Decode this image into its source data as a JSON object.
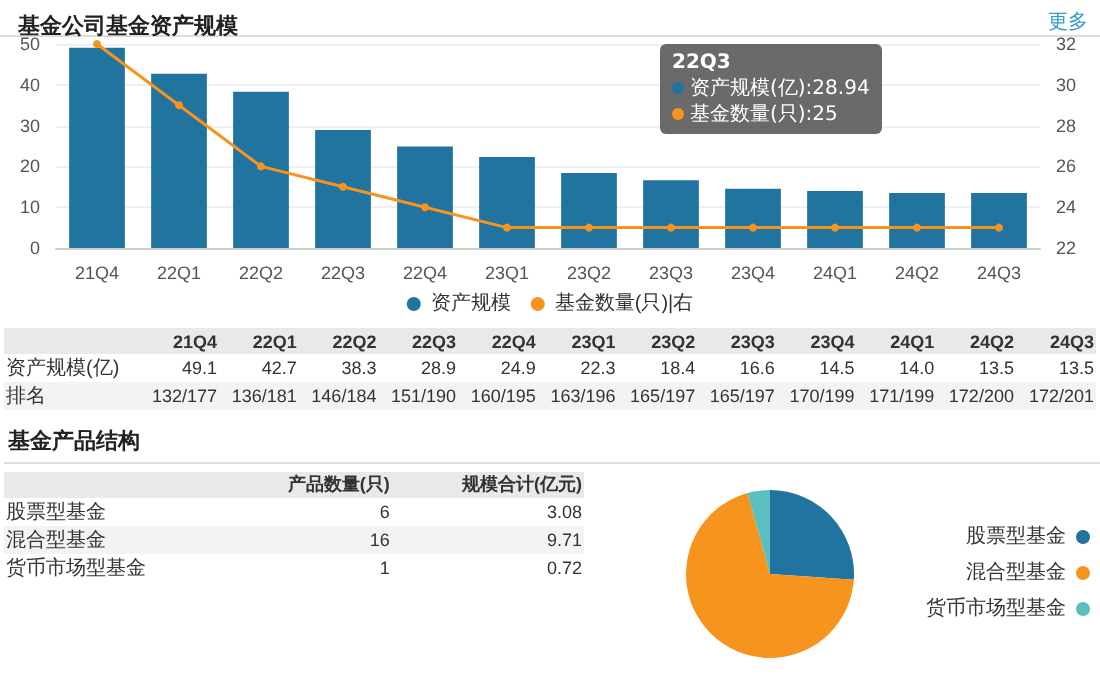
{
  "chart_data": [
    {
      "type": "bar",
      "title": "基金公司基金资产规模",
      "categories": [
        "21Q4",
        "22Q1",
        "22Q2",
        "22Q3",
        "22Q4",
        "23Q1",
        "23Q2",
        "23Q3",
        "23Q4",
        "24Q1",
        "24Q2",
        "24Q3"
      ],
      "series": [
        {
          "name": "资产规模",
          "type": "bar",
          "color": "#2274a0",
          "values": [
            49.1,
            42.7,
            38.3,
            28.9,
            24.9,
            22.3,
            18.4,
            16.6,
            14.5,
            14.0,
            13.5,
            13.5
          ]
        },
        {
          "name": "基金数量(只)|右",
          "type": "line",
          "axis": "y2",
          "color": "#f7941d",
          "values": [
            32,
            29,
            26,
            25,
            24,
            23,
            23,
            23,
            23,
            23,
            23,
            23
          ]
        }
      ],
      "ylim": [
        0,
        50
      ],
      "yticks": [
        0,
        10,
        20,
        30,
        40,
        50
      ],
      "y2lim": [
        22,
        32
      ],
      "y2ticks": [
        22,
        24,
        26,
        28,
        30,
        32
      ],
      "grid": "y",
      "legend": "bottom",
      "marker": "circle",
      "line_style": "solid",
      "annotations": [
        "更多",
        "22Q3",
        "资产规模(亿):28.94",
        "基金数量(只):25"
      ]
    },
    {
      "type": "other",
      "categories": [
        "21Q4",
        "22Q1",
        "22Q2",
        "22Q3",
        "22Q4",
        "23Q1",
        "23Q2",
        "23Q3",
        "23Q4",
        "24Q1",
        "24Q2",
        "24Q3"
      ],
      "series": [
        {
          "name": "资产规模(亿)",
          "values": [
            49.1,
            42.7,
            38.3,
            28.9,
            24.9,
            22.3,
            18.4,
            16.6,
            14.5,
            14.0,
            13.5,
            13.5
          ],
          "value_labels": [
            "49.1",
            "42.7",
            "38.3",
            "28.9",
            "24.9",
            "22.3",
            "18.4",
            "16.6",
            "14.5",
            "14.0",
            "13.5",
            "13.5"
          ]
        }
      ],
      "data_labels": true,
      "annotations": [
        "排名",
        "132/177",
        "136/181",
        "146/184",
        "151/190",
        "160/195",
        "163/196",
        "165/197",
        "165/197",
        "170/199",
        "171/199",
        "172/200",
        "172/201"
      ]
    },
    {
      "type": "other",
      "title": "基金产品结构",
      "categories": [
        "股票型基金",
        "混合型基金",
        "货币市场型基金"
      ],
      "series": [
        {
          "name": "产品数量(只)",
          "values": [
            6,
            16,
            1
          ]
        },
        {
          "name": "规模合计(亿元)",
          "values": [
            3.08,
            9.71,
            0.72
          ]
        }
      ],
      "data_labels": true
    },
    {
      "type": "pie",
      "categories": [
        "股票型基金",
        "混合型基金",
        "货币市场型基金"
      ],
      "values": [
        26.1,
        69.6,
        4.3
      ],
      "colors": [
        "#2274a0",
        "#f7941d",
        "#5bbfc0"
      ],
      "legend": "right"
    }
  ]
}
